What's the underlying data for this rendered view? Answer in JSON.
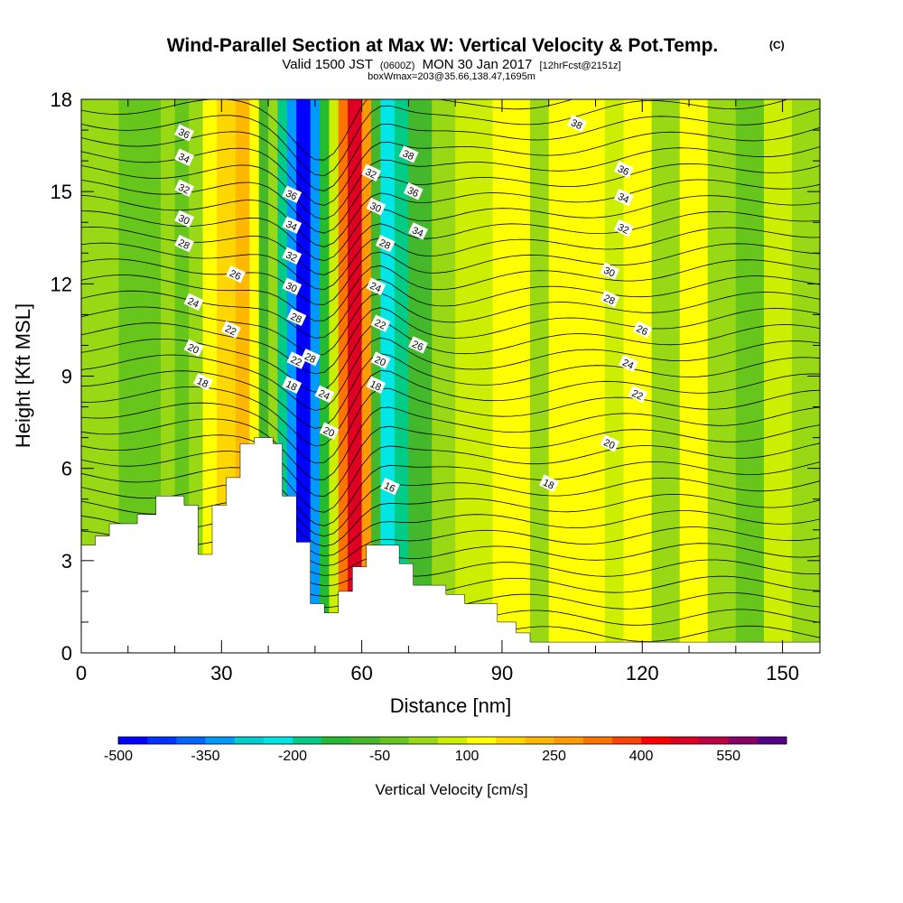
{
  "chart_data": {
    "type": "heatmap",
    "title": "Wind-Parallel Section at Max W: Vertical Velocity & Pot.Temp.",
    "title_mark": "(C)",
    "subtitle": {
      "valid": "Valid 1500 JST",
      "utc": "(0600Z)",
      "date": "MON 30 Jan 2017",
      "forecast": "[12hrFcst@2151z]"
    },
    "info": "boxWmax=203@35.66,138.47,1695m",
    "xlabel": "Distance [nm]",
    "ylabel": "Height [Kft MSL]",
    "xlim": [
      0,
      158
    ],
    "ylim": [
      0,
      18
    ],
    "x_ticks": [
      0,
      30,
      60,
      90,
      120,
      150
    ],
    "y_ticks": [
      0,
      3,
      6,
      9,
      12,
      15,
      18
    ],
    "colorbar": {
      "title": "Vertical Velocity [cm/s]",
      "levels": [
        -500,
        -450,
        -400,
        -350,
        -300,
        -250,
        -200,
        -150,
        -100,
        -50,
        0,
        50,
        100,
        150,
        200,
        250,
        300,
        350,
        400,
        450,
        500,
        550,
        600
      ],
      "labels": [
        -500,
        -350,
        -200,
        -50,
        100,
        250,
        400,
        550
      ],
      "colors": [
        "#0000ff",
        "#0033ff",
        "#0066ff",
        "#0099ff",
        "#00cccc",
        "#00e5e5",
        "#00cc88",
        "#22bb33",
        "#44b82a",
        "#66c61c",
        "#99d814",
        "#ccee00",
        "#ffff00",
        "#ffd700",
        "#ffb800",
        "#ff9a00",
        "#ff7400",
        "#ff4400",
        "#ff0000",
        "#dd0022",
        "#bb0044",
        "#880066",
        "#550088"
      ]
    },
    "vertical_velocity_bands": [
      {
        "x": [
          0,
          8
        ],
        "value": 0
      },
      {
        "x": [
          8,
          17
        ],
        "value": -20
      },
      {
        "x": [
          17,
          20
        ],
        "value": 30
      },
      {
        "x": [
          20,
          23
        ],
        "value": -40
      },
      {
        "x": [
          23,
          26
        ],
        "value": 40
      },
      {
        "x": [
          26,
          29
        ],
        "value": 100
      },
      {
        "x": [
          29,
          33
        ],
        "value": 160
      },
      {
        "x": [
          33,
          36
        ],
        "value": 220
      },
      {
        "x": [
          36,
          38
        ],
        "value": 110
      },
      {
        "x": [
          38,
          40
        ],
        "value": -90
      },
      {
        "x": [
          40,
          42
        ],
        "value": 0
      },
      {
        "x": [
          42,
          44
        ],
        "value": -200
      },
      {
        "x": [
          44,
          46
        ],
        "value": -340
      },
      {
        "x": [
          46,
          49
        ],
        "value": -470
      },
      {
        "x": [
          49,
          51
        ],
        "value": -320
      },
      {
        "x": [
          51,
          53
        ],
        "value": -140
      },
      {
        "x": [
          53,
          55
        ],
        "value": 90
      },
      {
        "x": [
          55,
          57
        ],
        "value": 320
      },
      {
        "x": [
          57,
          60
        ],
        "value": 480
      },
      {
        "x": [
          60,
          62
        ],
        "value": 260
      },
      {
        "x": [
          62,
          64
        ],
        "value": -60
      },
      {
        "x": [
          64,
          67
        ],
        "value": -250
      },
      {
        "x": [
          67,
          70
        ],
        "value": -170
      },
      {
        "x": [
          70,
          75
        ],
        "value": -70
      },
      {
        "x": [
          75,
          80
        ],
        "value": 20
      },
      {
        "x": [
          80,
          88
        ],
        "value": 60
      },
      {
        "x": [
          88,
          96
        ],
        "value": 110
      },
      {
        "x": [
          96,
          100
        ],
        "value": 40
      },
      {
        "x": [
          100,
          104
        ],
        "value": 110
      },
      {
        "x": [
          104,
          112
        ],
        "value": 140
      },
      {
        "x": [
          112,
          116
        ],
        "value": 70
      },
      {
        "x": [
          116,
          122
        ],
        "value": 120
      },
      {
        "x": [
          122,
          128
        ],
        "value": 30
      },
      {
        "x": [
          128,
          134
        ],
        "value": 100
      },
      {
        "x": [
          134,
          140
        ],
        "value": 40
      },
      {
        "x": [
          140,
          146
        ],
        "value": -30
      },
      {
        "x": [
          146,
          152
        ],
        "value": 50
      },
      {
        "x": [
          152,
          158
        ],
        "value": 10
      }
    ],
    "terrain": [
      [
        0,
        3.5
      ],
      [
        3,
        3.5
      ],
      [
        3,
        3.8
      ],
      [
        6,
        3.8
      ],
      [
        6,
        4.2
      ],
      [
        12,
        4.2
      ],
      [
        12,
        4.5
      ],
      [
        16,
        4.5
      ],
      [
        16,
        5.1
      ],
      [
        22,
        5.1
      ],
      [
        22,
        4.8
      ],
      [
        25,
        4.8
      ],
      [
        25,
        3.2
      ],
      [
        28,
        3.2
      ],
      [
        28,
        4.8
      ],
      [
        31,
        4.8
      ],
      [
        31,
        5.7
      ],
      [
        34,
        5.7
      ],
      [
        34,
        6.8
      ],
      [
        37,
        6.8
      ],
      [
        37,
        7.0
      ],
      [
        41,
        7.0
      ],
      [
        41,
        6.8
      ],
      [
        43,
        6.8
      ],
      [
        43,
        5.1
      ],
      [
        46,
        5.1
      ],
      [
        46,
        3.6
      ],
      [
        49,
        3.6
      ],
      [
        49,
        1.6
      ],
      [
        52,
        1.6
      ],
      [
        52,
        1.3
      ],
      [
        55,
        1.3
      ],
      [
        55,
        2.0
      ],
      [
        58,
        2.0
      ],
      [
        58,
        2.8
      ],
      [
        61,
        2.8
      ],
      [
        61,
        3.5
      ],
      [
        68,
        3.5
      ],
      [
        68,
        2.9
      ],
      [
        71,
        2.9
      ],
      [
        71,
        2.2
      ],
      [
        78,
        2.2
      ],
      [
        78,
        1.9
      ],
      [
        82,
        1.9
      ],
      [
        82,
        1.6
      ],
      [
        89,
        1.6
      ],
      [
        89,
        1.0
      ],
      [
        93,
        1.0
      ],
      [
        93,
        0.65
      ],
      [
        96,
        0.65
      ],
      [
        96,
        0.35
      ],
      [
        158,
        0.35
      ]
    ],
    "theta_contours": [
      {
        "value": "16",
        "x": 66,
        "y": 5.4
      },
      {
        "value": "18",
        "x": 26,
        "y": 8.8
      },
      {
        "value": "18",
        "x": 45,
        "y": 8.7
      },
      {
        "value": "18",
        "x": 63,
        "y": 8.7
      },
      {
        "value": "18",
        "x": 100,
        "y": 5.5
      },
      {
        "value": "20",
        "x": 24,
        "y": 9.9
      },
      {
        "value": "20",
        "x": 53,
        "y": 7.2
      },
      {
        "value": "20",
        "x": 64,
        "y": 9.5
      },
      {
        "value": "20",
        "x": 113,
        "y": 6.8
      },
      {
        "value": "22",
        "x": 32,
        "y": 10.5
      },
      {
        "value": "22",
        "x": 46,
        "y": 9.5
      },
      {
        "value": "22",
        "x": 64,
        "y": 10.7
      },
      {
        "value": "22",
        "x": 119,
        "y": 8.4
      },
      {
        "value": "24",
        "x": 24,
        "y": 11.4
      },
      {
        "value": "24",
        "x": 52,
        "y": 8.4
      },
      {
        "value": "24",
        "x": 63,
        "y": 11.9
      },
      {
        "value": "24",
        "x": 117,
        "y": 9.4
      },
      {
        "value": "26",
        "x": 33,
        "y": 12.3
      },
      {
        "value": "26",
        "x": 72,
        "y": 10.0
      },
      {
        "value": "26",
        "x": 120,
        "y": 10.5
      },
      {
        "value": "28",
        "x": 22,
        "y": 13.3
      },
      {
        "value": "28",
        "x": 49,
        "y": 9.6
      },
      {
        "value": "28",
        "x": 46,
        "y": 10.9
      },
      {
        "value": "28",
        "x": 65,
        "y": 13.3
      },
      {
        "value": "28",
        "x": 113,
        "y": 11.5
      },
      {
        "value": "30",
        "x": 22,
        "y": 14.1
      },
      {
        "value": "30",
        "x": 45,
        "y": 11.9
      },
      {
        "value": "30",
        "x": 63,
        "y": 14.5
      },
      {
        "value": "30",
        "x": 113,
        "y": 12.4
      },
      {
        "value": "32",
        "x": 22,
        "y": 15.1
      },
      {
        "value": "32",
        "x": 45,
        "y": 12.9
      },
      {
        "value": "32",
        "x": 62,
        "y": 15.6
      },
      {
        "value": "32",
        "x": 116,
        "y": 13.8
      },
      {
        "value": "34",
        "x": 22,
        "y": 16.1
      },
      {
        "value": "34",
        "x": 45,
        "y": 13.9
      },
      {
        "value": "34",
        "x": 72,
        "y": 13.7
      },
      {
        "value": "34",
        "x": 116,
        "y": 14.8
      },
      {
        "value": "36",
        "x": 22,
        "y": 16.9
      },
      {
        "value": "36",
        "x": 45,
        "y": 14.9
      },
      {
        "value": "36",
        "x": 71,
        "y": 15.0
      },
      {
        "value": "36",
        "x": 116,
        "y": 15.7
      },
      {
        "value": "38",
        "x": 70,
        "y": 16.2
      },
      {
        "value": "38",
        "x": 106,
        "y": 17.2
      }
    ]
  }
}
